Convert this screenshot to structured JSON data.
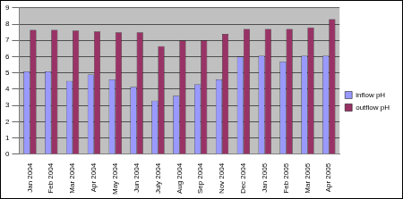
{
  "chart_data": {
    "type": "bar",
    "categories": [
      "Jan 2004",
      "Feb 2004",
      "Mar 2004",
      "Apr 2004",
      "May 2004",
      "Jun 2004",
      "July 2004",
      "Aug 2004",
      "Sep 2004",
      "Nov 2004",
      "Dec 2004",
      "Jan 2005",
      "Feb 2005",
      "Mar 2005",
      "Apr 2005"
    ],
    "series": [
      {
        "name": "inflow pH",
        "color": "#9999ff",
        "values": [
          5.1,
          5.1,
          4.5,
          4.9,
          4.6,
          4.15,
          3.3,
          3.6,
          4.3,
          4.6,
          6.0,
          6.05,
          5.7,
          6.05,
          6.05
        ]
      },
      {
        "name": "outflow pH",
        "color": "#993366",
        "values": [
          7.65,
          7.65,
          7.6,
          7.55,
          7.5,
          7.5,
          6.65,
          7.0,
          7.0,
          7.4,
          7.7,
          7.7,
          7.7,
          7.8,
          8.3
        ]
      }
    ],
    "ylim": [
      0,
      9
    ],
    "yticks": [
      0,
      1,
      2,
      3,
      4,
      5,
      6,
      7,
      8,
      9
    ],
    "grid": true,
    "legend": "right"
  }
}
